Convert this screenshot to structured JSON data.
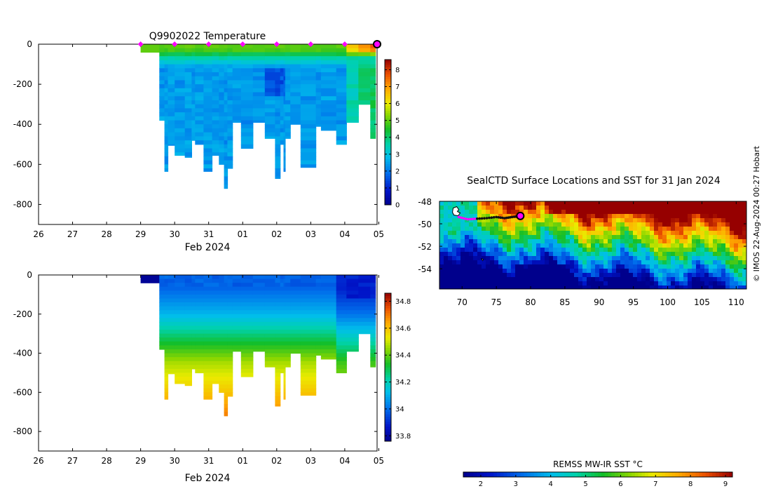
{
  "chart_data": [
    {
      "id": "temperature",
      "type": "heatmap",
      "title": "Q9902022  Temperature",
      "xlabel": "Feb 2024",
      "ylabel": "",
      "x_ticks": [
        "26",
        "27",
        "28",
        "29",
        "30",
        "31",
        "01",
        "02",
        "03",
        "04",
        "05"
      ],
      "y_ticks": [
        "0",
        "-200",
        "-400",
        "-600",
        "-800"
      ],
      "y_tick_values": [
        0,
        -200,
        -400,
        -600,
        -800
      ],
      "ylim": [
        -900,
        0
      ],
      "xlim": [
        0,
        9.95
      ],
      "profile_markers_x": [
        3,
        4,
        5,
        6,
        7,
        8,
        9
      ],
      "current_position_x": 9.95,
      "colorbar": {
        "ticks": [
          "0",
          "1",
          "2",
          "3",
          "4",
          "5",
          "6",
          "7",
          "8"
        ],
        "min": 0,
        "max": 8.6
      },
      "profiles": [
        {
          "x0": 3.0,
          "x1": 3.55,
          "depth": 40,
          "kind": "shallow"
        },
        {
          "x0": 3.55,
          "x1": 3.7,
          "depth": 380
        },
        {
          "x0": 3.7,
          "x1": 3.8,
          "depth": 635
        },
        {
          "x0": 3.8,
          "x1": 4.0,
          "depth": 505
        },
        {
          "x0": 4.0,
          "x1": 4.3,
          "depth": 555
        },
        {
          "x0": 4.3,
          "x1": 4.5,
          "depth": 565
        },
        {
          "x0": 4.5,
          "x1": 4.6,
          "depth": 480
        },
        {
          "x0": 4.6,
          "x1": 4.85,
          "depth": 500
        },
        {
          "x0": 4.85,
          "x1": 5.1,
          "depth": 635
        },
        {
          "x0": 5.1,
          "x1": 5.3,
          "depth": 555
        },
        {
          "x0": 5.3,
          "x1": 5.45,
          "depth": 600
        },
        {
          "x0": 5.45,
          "x1": 5.55,
          "depth": 720
        },
        {
          "x0": 5.55,
          "x1": 5.7,
          "depth": 620
        },
        {
          "x0": 5.7,
          "x1": 5.95,
          "depth": 390
        },
        {
          "x0": 5.95,
          "x1": 6.3,
          "depth": 520
        },
        {
          "x0": 6.3,
          "x1": 6.65,
          "depth": 390
        },
        {
          "x0": 6.65,
          "x1": 6.95,
          "depth": 470
        },
        {
          "x0": 6.95,
          "x1": 7.1,
          "depth": 670
        },
        {
          "x0": 7.1,
          "x1": 7.2,
          "depth": 500
        },
        {
          "x0": 7.2,
          "x1": 7.25,
          "depth": 635
        },
        {
          "x0": 7.25,
          "x1": 7.4,
          "depth": 470
        },
        {
          "x0": 7.4,
          "x1": 7.7,
          "depth": 400
        },
        {
          "x0": 7.7,
          "x1": 8.15,
          "depth": 615
        },
        {
          "x0": 8.15,
          "x1": 8.3,
          "depth": 410
        },
        {
          "x0": 8.3,
          "x1": 8.75,
          "depth": 430
        },
        {
          "x0": 8.75,
          "x1": 9.05,
          "depth": 500
        },
        {
          "x0": 9.05,
          "x1": 9.4,
          "depth": 390
        },
        {
          "x0": 9.4,
          "x1": 9.75,
          "depth": 300
        },
        {
          "x0": 9.75,
          "x1": 9.9,
          "depth": 470
        }
      ]
    },
    {
      "id": "salinity",
      "type": "heatmap",
      "title": "",
      "xlabel": "Feb 2024",
      "ylabel": "",
      "x_ticks": [
        "26",
        "27",
        "28",
        "29",
        "30",
        "31",
        "01",
        "02",
        "03",
        "04",
        "05"
      ],
      "y_ticks": [
        "0",
        "-200",
        "-400",
        "-600",
        "-800"
      ],
      "y_tick_values": [
        0,
        -200,
        -400,
        -600,
        -800
      ],
      "ylim": [
        -900,
        0
      ],
      "xlim": [
        0,
        9.95
      ],
      "colorbar": {
        "ticks": [
          "33.8",
          "34",
          "34.2",
          "34.4",
          "34.6",
          "34.8"
        ],
        "min": 33.76,
        "max": 34.86
      }
    },
    {
      "id": "sst_map",
      "type": "heatmap",
      "title": "SealCTD Surface Locations and SST for 31 Jan 2024",
      "x_ticks": [
        "70",
        "75",
        "80",
        "85",
        "90",
        "95",
        "100",
        "105",
        "110"
      ],
      "x_tick_values": [
        70,
        75,
        80,
        85,
        90,
        95,
        100,
        105,
        110
      ],
      "y_ticks": [
        "-48",
        "-50",
        "-52",
        "-54"
      ],
      "y_tick_values": [
        -48,
        -50,
        -52,
        -54
      ],
      "xlim": [
        66.7,
        111.5
      ],
      "ylim": [
        -55.8,
        -48
      ],
      "track": {
        "lon": [
          69.5,
          70.8,
          72.2,
          73.6,
          75.0,
          76.2,
          77.3,
          78.5
        ],
        "lat": [
          -49.4,
          -49.6,
          -49.55,
          -49.5,
          -49.4,
          -49.5,
          -49.4,
          -49.3
        ]
      },
      "current_position": {
        "lon": 78.5,
        "lat": -49.3
      },
      "colorbar": {
        "label": "REMSS MW-IR SST °C",
        "ticks": [
          "2",
          "3",
          "4",
          "5",
          "6",
          "7",
          "8",
          "9"
        ],
        "min": 1.5,
        "max": 9.2
      }
    }
  ],
  "credit": "© IMOS 22-Aug-2024 00:27 Hobart"
}
